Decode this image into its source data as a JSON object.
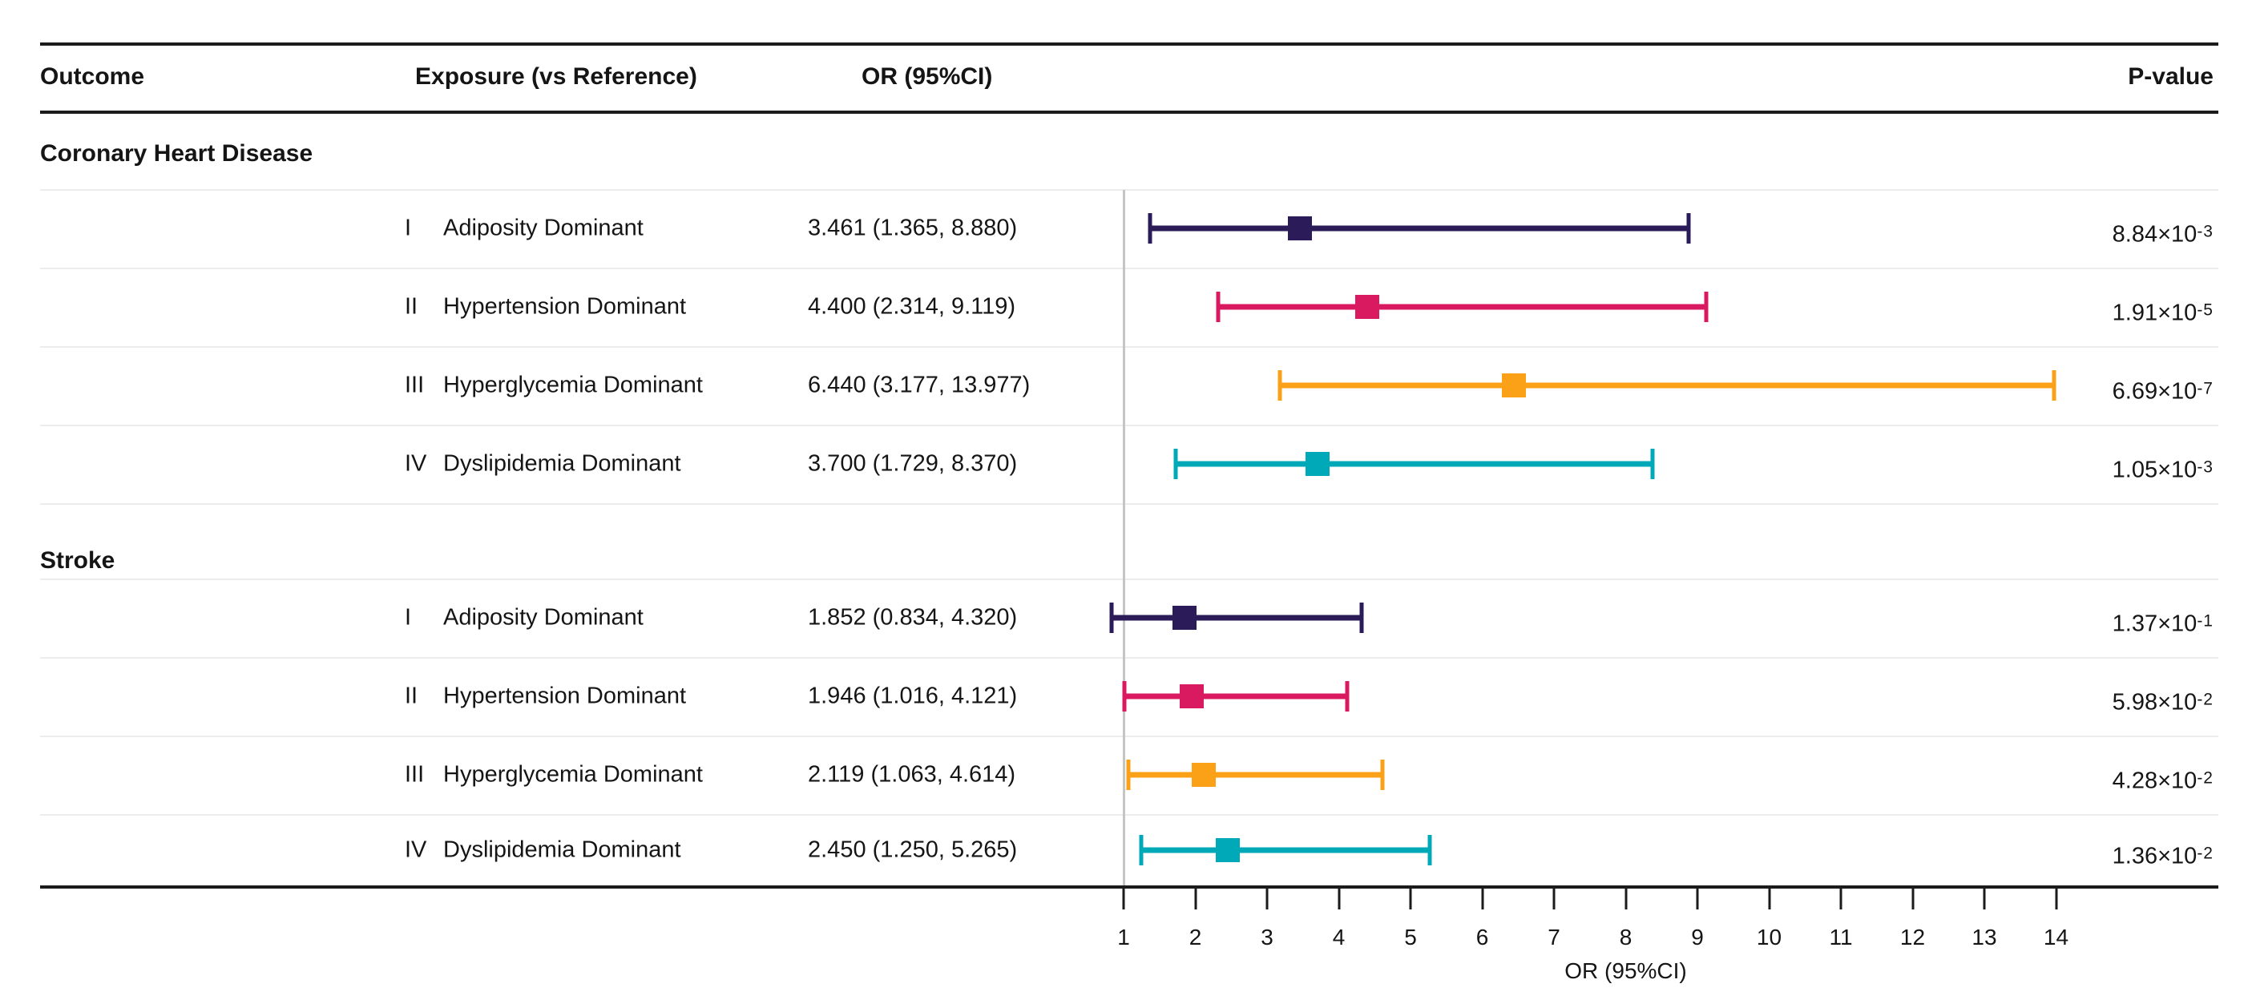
{
  "figure": {
    "columns": {
      "outcome": "Outcome",
      "exposure": "Exposure (vs Reference)",
      "or": "OR (95%CI)",
      "pvalue": "P-value"
    },
    "axis_title": "OR (95%CI)"
  },
  "chart_data": {
    "type": "forest",
    "title": "",
    "xlabel": "OR (95%CI)",
    "x_range": [
      1,
      14
    ],
    "x_ticks": [
      1,
      2,
      3,
      4,
      5,
      6,
      7,
      8,
      9,
      10,
      11,
      12,
      13,
      14
    ],
    "reference_line_x": 1,
    "grid": false,
    "legend": "none",
    "column_headers": [
      "Outcome",
      "Exposure (vs Reference)",
      "OR (95%CI)",
      "P-value"
    ],
    "groups": [
      {
        "outcome": "Coronary Heart Disease",
        "rows": [
          {
            "numeral": "I",
            "exposure": "Adiposity Dominant",
            "or": 3.461,
            "ci_low": 1.365,
            "ci_high": 8.88,
            "or_label": "3.461 (1.365, 8.880)",
            "p_mantissa": "8.84",
            "p_times": "×10",
            "p_exponent": "-3",
            "color": "#2b1b59"
          },
          {
            "numeral": "II",
            "exposure": "Hypertension Dominant",
            "or": 4.4,
            "ci_low": 2.314,
            "ci_high": 9.119,
            "or_label": "4.400 (2.314, 9.119)",
            "p_mantissa": "1.91",
            "p_times": "×10",
            "p_exponent": "-5",
            "color": "#d91a60"
          },
          {
            "numeral": "III",
            "exposure": "Hyperglycemia Dominant",
            "or": 6.44,
            "ci_low": 3.177,
            "ci_high": 13.977,
            "or_label": "6.440 (3.177, 13.977)",
            "p_mantissa": "6.69",
            "p_times": "×10",
            "p_exponent": "-7",
            "color": "#fba118"
          },
          {
            "numeral": "IV",
            "exposure": "Dyslipidemia Dominant",
            "or": 3.7,
            "ci_low": 1.729,
            "ci_high": 8.37,
            "or_label": "3.700 (1.729, 8.370)",
            "p_mantissa": "1.05",
            "p_times": "×10",
            "p_exponent": "-3",
            "color": "#00a9b8"
          }
        ]
      },
      {
        "outcome": "Stroke",
        "rows": [
          {
            "numeral": "I",
            "exposure": "Adiposity Dominant",
            "or": 1.852,
            "ci_low": 0.834,
            "ci_high": 4.32,
            "or_label": "1.852 (0.834, 4.320)",
            "p_mantissa": "1.37",
            "p_times": "×10",
            "p_exponent": "-1",
            "color": "#2b1b59"
          },
          {
            "numeral": "II",
            "exposure": "Hypertension Dominant",
            "or": 1.946,
            "ci_low": 1.016,
            "ci_high": 4.121,
            "or_label": "1.946 (1.016, 4.121)",
            "p_mantissa": "5.98",
            "p_times": "×10",
            "p_exponent": "-2",
            "color": "#d91a60"
          },
          {
            "numeral": "III",
            "exposure": "Hyperglycemia Dominant",
            "or": 2.119,
            "ci_low": 1.063,
            "ci_high": 4.614,
            "or_label": "2.119 (1.063, 4.614)",
            "p_mantissa": "4.28",
            "p_times": "×10",
            "p_exponent": "-2",
            "color": "#fba118"
          },
          {
            "numeral": "IV",
            "exposure": "Dyslipidemia Dominant",
            "or": 2.45,
            "ci_low": 1.25,
            "ci_high": 5.265,
            "or_label": "2.450 (1.250, 5.265)",
            "p_mantissa": "1.36",
            "p_times": "×10",
            "p_exponent": "-2",
            "color": "#00a9b8"
          }
        ]
      }
    ],
    "colors": {
      "series_I_adiposity": "#2b1b59",
      "series_II_hypertension": "#d91a60",
      "series_III_hyperglycemia": "#fba118",
      "series_IV_dyslipidemia": "#00a9b8",
      "reference_line": "#c5c5c5"
    }
  }
}
